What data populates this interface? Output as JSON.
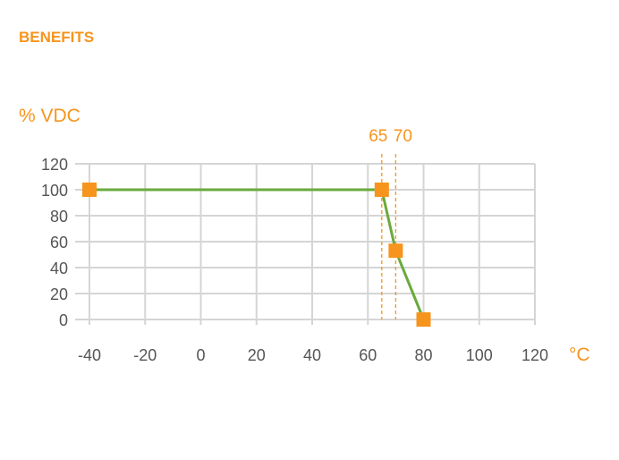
{
  "header": {
    "title": "BENEFITS"
  },
  "chart_data": {
    "type": "line",
    "title": "",
    "xlabel": "°C",
    "ylabel": "% VDC",
    "xlim": [
      -40,
      120
    ],
    "ylim": [
      0,
      120
    ],
    "xticks": [
      -40,
      -20,
      0,
      20,
      40,
      60,
      80,
      100,
      120
    ],
    "yticks": [
      0,
      20,
      40,
      60,
      80,
      100,
      120
    ],
    "grid": true,
    "series": [
      {
        "x": [
          -40,
          65,
          70,
          80
        ],
        "y": [
          100,
          100,
          53,
          0
        ]
      }
    ],
    "annotations": [
      {
        "label": "65",
        "x": 65
      },
      {
        "label": "70",
        "x": 70
      }
    ],
    "colors": {
      "line": "#6AAA3C",
      "marker": "#F7941D",
      "accent": "#F7941D",
      "grid": "#D5D5D5",
      "text": "#555555"
    }
  }
}
